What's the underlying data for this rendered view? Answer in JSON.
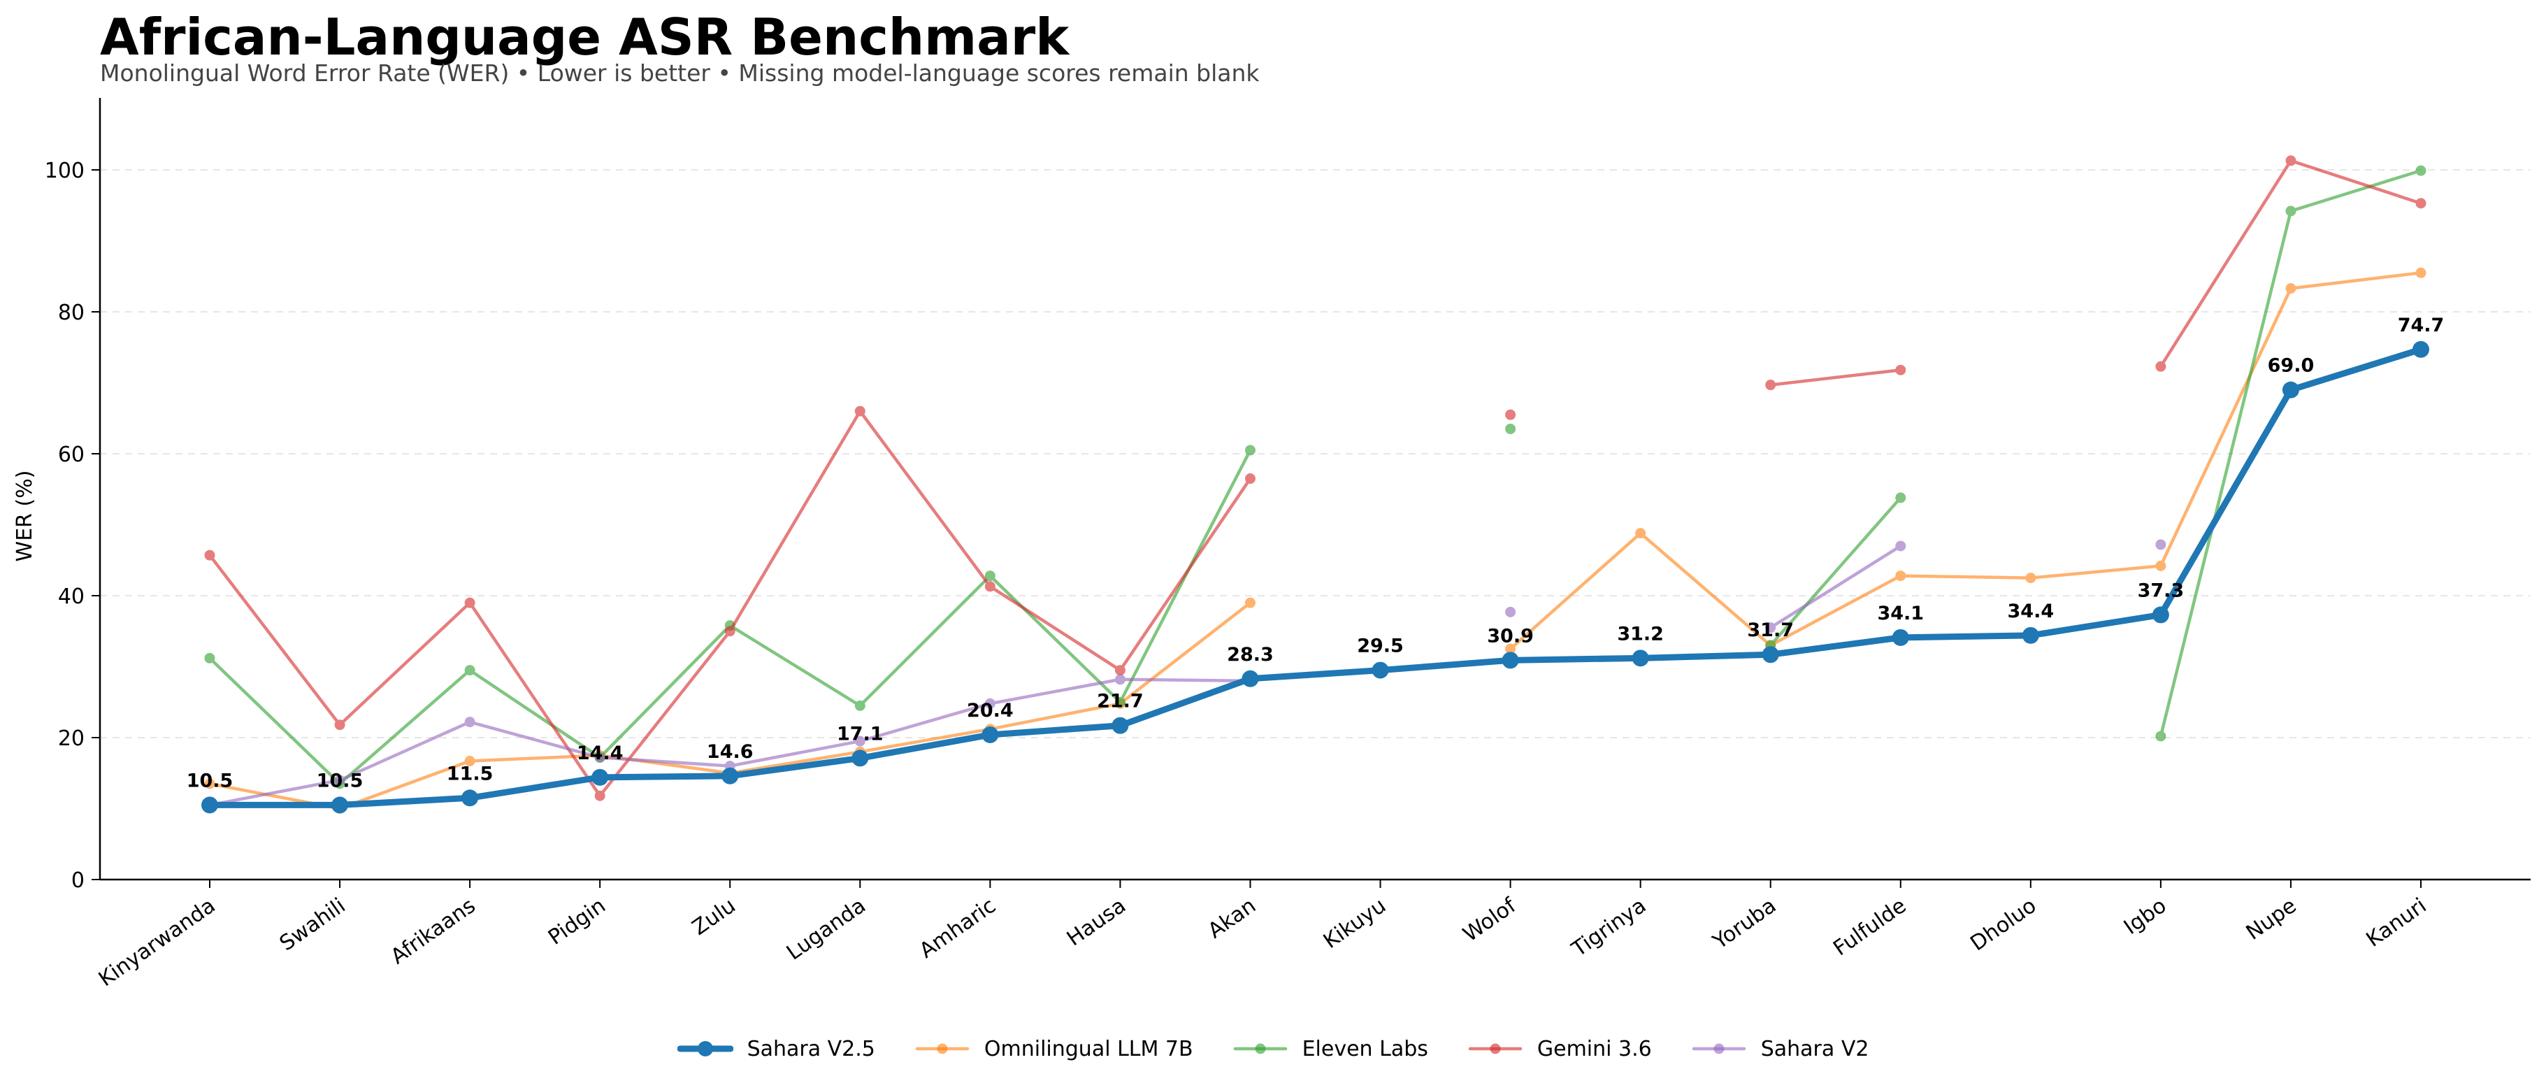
{
  "chart_data": {
    "type": "line",
    "title": "African-Language ASR Benchmark",
    "subtitle": "Monolingual Word Error Rate (WER) • Lower is better • Missing model-language scores remain blank",
    "xlabel": "",
    "ylabel": "WER (%)",
    "ylim": [
      0,
      110
    ],
    "yticks": [
      0,
      20,
      40,
      60,
      80,
      100
    ],
    "grid": "horizontal dashed",
    "legend_position": "bottom-center",
    "categories": [
      "Kinyarwanda",
      "Swahili",
      "Afrikaans",
      "Pidgin",
      "Zulu",
      "Luganda",
      "Amharic",
      "Hausa",
      "Akan",
      "Kikuyu",
      "Wolof",
      "Tigrinya",
      "Yoruba",
      "Fulfulde",
      "Dholuo",
      "Igbo",
      "Nupe",
      "Kanuri"
    ],
    "series": [
      {
        "name": "Sahara V2.5",
        "color": "#1f77b4",
        "highlight": true,
        "data_labels": [
          "10.5",
          "10.5",
          "11.5",
          "14.4",
          "14.6",
          "17.1",
          "20.4",
          "21.7",
          "28.3",
          "29.5",
          "30.9",
          "31.2",
          "31.7",
          "34.1",
          "34.4",
          "37.3",
          "69.0",
          "74.7"
        ],
        "values": [
          10.5,
          10.5,
          11.5,
          14.4,
          14.6,
          17.1,
          20.4,
          21.7,
          28.3,
          29.5,
          30.9,
          31.2,
          31.7,
          34.1,
          34.4,
          37.3,
          69.0,
          74.7
        ]
      },
      {
        "name": "Omnilingual LLM 7B",
        "color": "#ff7f0e",
        "values": [
          13.5,
          10.0,
          16.7,
          17.5,
          15.0,
          18.0,
          21.2,
          24.8,
          39.0,
          null,
          32.5,
          48.8,
          33.0,
          42.8,
          42.5,
          44.2,
          83.3,
          85.5
        ]
      },
      {
        "name": "Eleven Labs",
        "color": "#2ca02c",
        "values": [
          31.2,
          13.5,
          29.5,
          17.2,
          35.8,
          24.5,
          42.8,
          25.0,
          60.5,
          null,
          63.5,
          null,
          33.0,
          53.8,
          null,
          20.2,
          94.2,
          99.9
        ]
      },
      {
        "name": "Gemini 3.6",
        "color": "#d62728",
        "values": [
          45.7,
          21.8,
          39.0,
          11.8,
          35.0,
          66.0,
          41.3,
          29.5,
          56.5,
          null,
          65.5,
          null,
          69.7,
          71.8,
          null,
          72.3,
          101.3,
          95.3
        ]
      },
      {
        "name": "Sahara V2",
        "color": "#9467bd",
        "values": [
          10.5,
          14.0,
          22.2,
          17.2,
          16.0,
          19.5,
          24.8,
          28.2,
          28.0,
          null,
          37.7,
          null,
          35.5,
          47.0,
          null,
          47.2,
          null,
          null
        ]
      }
    ]
  }
}
